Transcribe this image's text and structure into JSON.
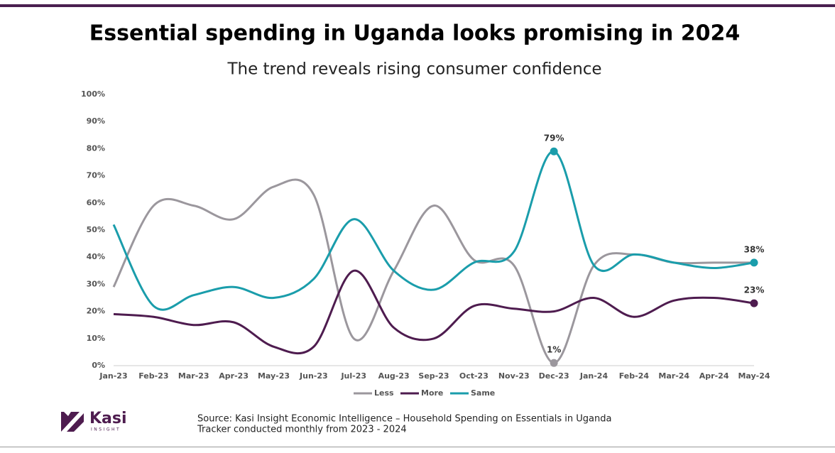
{
  "chart_data": {
    "type": "line",
    "title": "Essential spending in Uganda looks promising in 2024",
    "subtitle": "The trend reveals rising consumer confidence",
    "categories": [
      "Jan-23",
      "Feb-23",
      "Mar-23",
      "Apr-23",
      "May-23",
      "Jun-23",
      "Jul-23",
      "Aug-23",
      "Sep-23",
      "Oct-23",
      "Nov-23",
      "Dec-23",
      "Jan-24",
      "Feb-24",
      "Mar-24",
      "Apr-24",
      "May-24"
    ],
    "series": [
      {
        "name": "Less",
        "color": "#9b979d",
        "values": [
          29,
          59,
          59,
          54,
          66,
          63,
          10,
          35,
          59,
          39,
          37,
          1,
          37,
          41,
          38,
          38,
          38
        ],
        "value_labels": [
          null,
          null,
          null,
          null,
          null,
          null,
          null,
          null,
          null,
          null,
          null,
          "1%",
          null,
          null,
          null,
          null,
          null
        ]
      },
      {
        "name": "More",
        "color": "#4e1c4f",
        "values": [
          19,
          18,
          15,
          16,
          7,
          7,
          35,
          14,
          10,
          22,
          21,
          20,
          25,
          18,
          24,
          25,
          23
        ],
        "value_labels": [
          null,
          null,
          null,
          null,
          null,
          null,
          null,
          null,
          null,
          null,
          null,
          null,
          null,
          null,
          null,
          null,
          "23%"
        ]
      },
      {
        "name": "Same",
        "color": "#1a9dab",
        "values": [
          52,
          22,
          26,
          29,
          25,
          32,
          54,
          35,
          28,
          38,
          42,
          79,
          37,
          41,
          38,
          36,
          38
        ],
        "value_labels": [
          null,
          null,
          null,
          null,
          null,
          null,
          null,
          null,
          null,
          null,
          null,
          "79%",
          null,
          null,
          null,
          null,
          "38%"
        ]
      }
    ],
    "ylim": [
      0,
      100
    ],
    "yticks": [
      {
        "value": 0,
        "label": "0%"
      },
      {
        "value": 10,
        "label": "10%"
      },
      {
        "value": 20,
        "label": "20%"
      },
      {
        "value": 30,
        "label": "30%"
      },
      {
        "value": 40,
        "label": "40%"
      },
      {
        "value": 50,
        "label": "50%"
      },
      {
        "value": 60,
        "label": "60%"
      },
      {
        "value": 70,
        "label": "70%"
      },
      {
        "value": 80,
        "label": "80%"
      },
      {
        "value": 90,
        "label": "90%"
      },
      {
        "value": 100,
        "label": "100%"
      }
    ],
    "grid": false,
    "legend": "bottom"
  },
  "footer": {
    "source": [
      "Source: Kasi Insight Economic Intelligence –  Household Spending on Essentials in Uganda",
      "Tracker conducted monthly from 2023 - 2024"
    ],
    "logo": {
      "name": "Kasi",
      "tagline": "INSIGHT"
    }
  }
}
